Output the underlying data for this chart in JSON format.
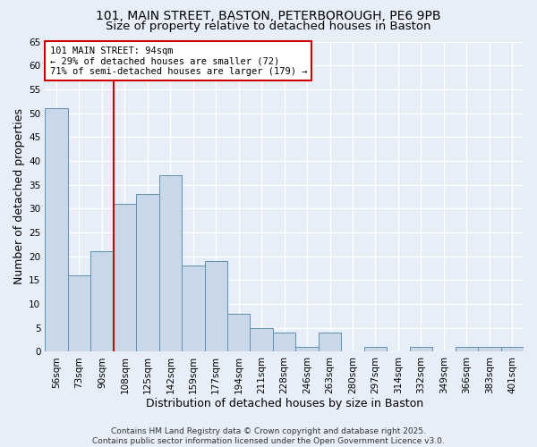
{
  "title_line1": "101, MAIN STREET, BASTON, PETERBOROUGH, PE6 9PB",
  "title_line2": "Size of property relative to detached houses in Baston",
  "xlabel": "Distribution of detached houses by size in Baston",
  "ylabel": "Number of detached properties",
  "categories": [
    "56sqm",
    "73sqm",
    "90sqm",
    "108sqm",
    "125sqm",
    "142sqm",
    "159sqm",
    "177sqm",
    "194sqm",
    "211sqm",
    "228sqm",
    "246sqm",
    "263sqm",
    "280sqm",
    "297sqm",
    "314sqm",
    "332sqm",
    "349sqm",
    "366sqm",
    "383sqm",
    "401sqm"
  ],
  "values": [
    51,
    16,
    21,
    31,
    33,
    37,
    18,
    19,
    8,
    5,
    4,
    1,
    4,
    0,
    1,
    0,
    1,
    0,
    1,
    1,
    1
  ],
  "bar_color": "#c8d8e8",
  "bar_edge_color": "#6090b0",
  "redline_index": 2,
  "annotation_text": "101 MAIN STREET: 94sqm\n← 29% of detached houses are smaller (72)\n71% of semi-detached houses are larger (179) →",
  "annotation_box_color": "#ffffff",
  "annotation_box_edge": "#cc0000",
  "redline_color": "#cc0000",
  "ylim": [
    0,
    65
  ],
  "yticks": [
    0,
    5,
    10,
    15,
    20,
    25,
    30,
    35,
    40,
    45,
    50,
    55,
    60,
    65
  ],
  "background_color": "#e8eef8",
  "grid_color": "#ffffff",
  "footer_text": "Contains HM Land Registry data © Crown copyright and database right 2025.\nContains public sector information licensed under the Open Government Licence v3.0.",
  "title_fontsize": 10,
  "subtitle_fontsize": 9.5,
  "axis_label_fontsize": 9,
  "tick_fontsize": 7.5,
  "annotation_fontsize": 7.5,
  "footer_fontsize": 6.5
}
